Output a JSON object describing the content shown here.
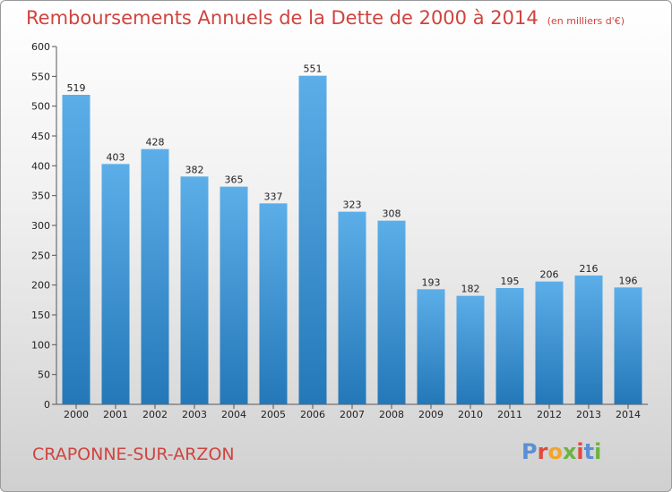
{
  "title": "Remboursements Annuels de la Dette de 2000 à 2014",
  "unit_note": "(en milliers d'€)",
  "city": "CRAPONNE-SUR-ARZON",
  "logo": {
    "letters": [
      "P",
      "r",
      "o",
      "x",
      "i",
      "t",
      "i"
    ],
    "colors": [
      "#5a8fd6",
      "#e04a3c",
      "#f3a52a",
      "#6cb33f",
      "#e04a3c",
      "#5a8fd6",
      "#6cb33f"
    ]
  },
  "colors": {
    "bar_top": "#5caee8",
    "bar_bottom": "#2478b8",
    "title": "#d0433e"
  },
  "chart_data": {
    "type": "bar",
    "title": "Remboursements Annuels de la Dette de 2000 à 2014",
    "subtitle": "(en milliers d'€)",
    "xlabel": "",
    "ylabel": "",
    "categories": [
      "2000",
      "2001",
      "2002",
      "2003",
      "2004",
      "2005",
      "2006",
      "2007",
      "2008",
      "2009",
      "2010",
      "2011",
      "2012",
      "2013",
      "2014"
    ],
    "values": [
      519,
      403,
      428,
      382,
      365,
      337,
      551,
      323,
      308,
      193,
      182,
      195,
      206,
      216,
      196
    ],
    "ylim": [
      0,
      600
    ],
    "yticks": [
      0,
      50,
      100,
      150,
      200,
      250,
      300,
      350,
      400,
      450,
      500,
      550,
      600
    ],
    "grid": false,
    "legend": "none"
  }
}
